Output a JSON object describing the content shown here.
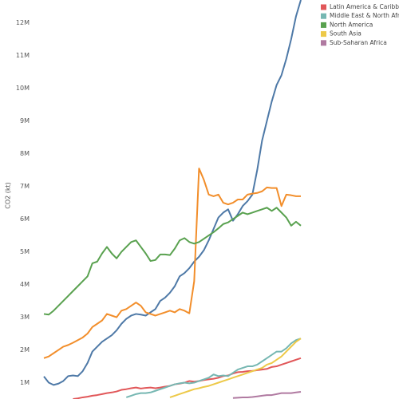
{
  "chart_data": {
    "type": "line",
    "y_label": "CO2 (kt)",
    "ylim": [
      500000,
      12700000
    ],
    "yticks": [
      {
        "value": 1000000,
        "label": "1M"
      },
      {
        "value": 2000000,
        "label": "2M"
      },
      {
        "value": 3000000,
        "label": "3M"
      },
      {
        "value": 4000000,
        "label": "4M"
      },
      {
        "value": 5000000,
        "label": "5M"
      },
      {
        "value": 6000000,
        "label": "6M"
      },
      {
        "value": 7000000,
        "label": "7M"
      },
      {
        "value": 8000000,
        "label": "8M"
      },
      {
        "value": 9000000,
        "label": "9M"
      },
      {
        "value": 10000000,
        "label": "10M"
      },
      {
        "value": 11000000,
        "label": "11M"
      },
      {
        "value": 12000000,
        "label": "12M"
      }
    ],
    "series": [
      {
        "color": "#4e79a7",
        "values": [
          1190000,
          1000000,
          930000,
          970000,
          1050000,
          1200000,
          1220000,
          1200000,
          1350000,
          1600000,
          1950000,
          2100000,
          2250000,
          2350000,
          2450000,
          2600000,
          2800000,
          2950000,
          3050000,
          3100000,
          3080000,
          3050000,
          3150000,
          3250000,
          3500000,
          3600000,
          3750000,
          3950000,
          4250000,
          4350000,
          4500000,
          4700000,
          4850000,
          5050000,
          5350000,
          5700000,
          6050000,
          6200000,
          6300000,
          5950000,
          6150000,
          6400000,
          6550000,
          6750000,
          7500000,
          8400000,
          9000000,
          9600000,
          10100000,
          10400000,
          10900000,
          11500000,
          12200000,
          12700000
        ]
      },
      {
        "color": "#f28e2b",
        "values": [
          1750000,
          1800000,
          1900000,
          2000000,
          2100000,
          2150000,
          2220000,
          2300000,
          2380000,
          2500000,
          2700000,
          2800000,
          2900000,
          3100000,
          3050000,
          3000000,
          3200000,
          3250000,
          3350000,
          3450000,
          3350000,
          3150000,
          3100000,
          3050000,
          3100000,
          3150000,
          3200000,
          3150000,
          3250000,
          3200000,
          3120000,
          4100000,
          7550000,
          7200000,
          6750000,
          6700000,
          6750000,
          6500000,
          6450000,
          6500000,
          6600000,
          6600000,
          6750000,
          6780000,
          6800000,
          6850000,
          6970000,
          6950000,
          6950000,
          6400000,
          6750000,
          6730000,
          6700000,
          6700000
        ]
      },
      {
        "name": "Latin America & Caribbean",
        "color": "#e15759",
        "values": [
          null,
          null,
          null,
          null,
          null,
          null,
          500000,
          520000,
          550000,
          570000,
          600000,
          620000,
          650000,
          680000,
          700000,
          730000,
          780000,
          800000,
          830000,
          850000,
          820000,
          840000,
          850000,
          830000,
          850000,
          880000,
          900000,
          950000,
          970000,
          1000000,
          1050000,
          1030000,
          1050000,
          1080000,
          1100000,
          1120000,
          1150000,
          1200000,
          1220000,
          1280000,
          1320000,
          1330000,
          1350000,
          1360000,
          1380000,
          1400000,
          1420000,
          1480000,
          1500000,
          1550000,
          1600000,
          1650000,
          1700000,
          1750000
        ]
      },
      {
        "name": "Middle East & North Africa",
        "color": "#76b7b2",
        "values": [
          null,
          null,
          null,
          null,
          null,
          null,
          null,
          null,
          null,
          null,
          null,
          null,
          null,
          null,
          null,
          null,
          null,
          550000,
          600000,
          650000,
          680000,
          680000,
          700000,
          750000,
          800000,
          850000,
          900000,
          950000,
          980000,
          1000000,
          980000,
          1000000,
          1050000,
          1100000,
          1150000,
          1250000,
          1200000,
          1220000,
          1200000,
          1300000,
          1400000,
          1450000,
          1500000,
          1500000,
          1550000,
          1650000,
          1750000,
          1850000,
          1950000,
          1950000,
          2050000,
          2200000,
          2300000,
          2350000
        ]
      },
      {
        "name": "North America",
        "color": "#59a14f",
        "values": [
          3100000,
          3080000,
          3200000,
          3350000,
          3500000,
          3650000,
          3800000,
          3950000,
          4100000,
          4250000,
          4650000,
          4700000,
          4950000,
          5150000,
          4950000,
          4800000,
          5000000,
          5150000,
          5300000,
          5350000,
          5150000,
          4950000,
          4720000,
          4750000,
          4920000,
          4920000,
          4900000,
          5100000,
          5350000,
          5420000,
          5300000,
          5250000,
          5300000,
          5400000,
          5500000,
          5600000,
          5720000,
          5850000,
          5900000,
          6000000,
          6100000,
          6200000,
          6150000,
          6200000,
          6250000,
          6300000,
          6350000,
          6250000,
          6350000,
          6200000,
          6050000,
          5800000,
          5920000,
          5800000
        ]
      },
      {
        "name": "South Asia",
        "color": "#edc948",
        "values": [
          null,
          null,
          null,
          null,
          null,
          null,
          null,
          null,
          null,
          null,
          null,
          null,
          null,
          null,
          null,
          null,
          null,
          null,
          null,
          null,
          null,
          null,
          null,
          null,
          null,
          null,
          550000,
          600000,
          650000,
          700000,
          750000,
          800000,
          830000,
          870000,
          900000,
          950000,
          1000000,
          1050000,
          1100000,
          1150000,
          1200000,
          1250000,
          1300000,
          1350000,
          1400000,
          1450000,
          1550000,
          1600000,
          1700000,
          1800000,
          1950000,
          2100000,
          2250000,
          2350000
        ]
      },
      {
        "name": "Sub-Saharan Africa",
        "color": "#b07aa1",
        "values": [
          null,
          null,
          null,
          null,
          null,
          null,
          null,
          null,
          null,
          null,
          null,
          null,
          null,
          null,
          null,
          null,
          null,
          null,
          null,
          null,
          null,
          null,
          null,
          null,
          null,
          null,
          null,
          null,
          null,
          null,
          null,
          null,
          null,
          null,
          null,
          null,
          null,
          null,
          null,
          530000,
          540000,
          550000,
          550000,
          560000,
          580000,
          600000,
          620000,
          620000,
          650000,
          680000,
          680000,
          680000,
          700000,
          720000
        ]
      }
    ]
  }
}
